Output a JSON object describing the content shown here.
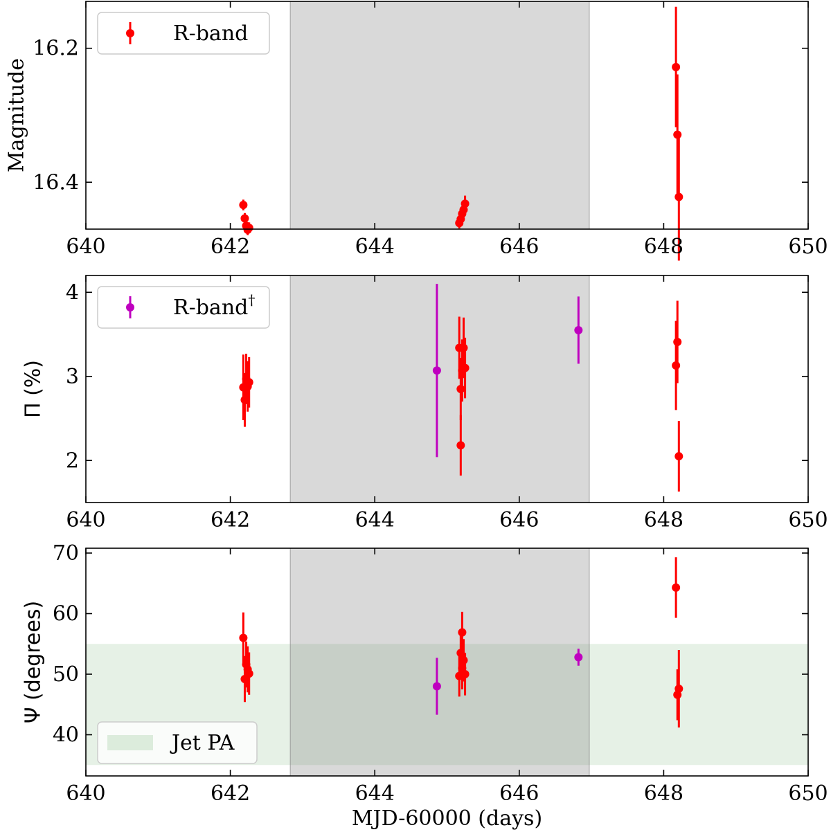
{
  "chart_data": [
    {
      "type": "scatter",
      "ylabel": "Magnitude",
      "xlim": [
        640,
        650
      ],
      "ylim": [
        16.47,
        16.13
      ],
      "y_inverted": true,
      "xticks": [
        640,
        642,
        644,
        646,
        648,
        650
      ],
      "xtick_labels": [
        "640",
        "642",
        "644",
        "646",
        "648",
        "650"
      ],
      "yticks": [
        16.2,
        16.4
      ],
      "ytick_labels": [
        "16.2",
        "16.4"
      ],
      "shaded_x": [
        642.83,
        646.97
      ],
      "legend": {
        "position": "top-left",
        "entries": [
          {
            "label": "R-band",
            "color": "#ff0000",
            "marker": "errorbar"
          }
        ]
      },
      "series": [
        {
          "color": "#ff0000",
          "points": [
            {
              "x": 642.18,
              "y": 16.434,
              "yerr": 0.008
            },
            {
              "x": 642.2,
              "y": 16.454,
              "yerr": 0.008
            },
            {
              "x": 642.22,
              "y": 16.465,
              "yerr": 0.008
            },
            {
              "x": 642.24,
              "y": 16.471,
              "yerr": 0.008
            },
            {
              "x": 642.26,
              "y": 16.468,
              "yerr": 0.008
            },
            {
              "x": 645.17,
              "y": 16.461,
              "yerr": 0.008
            },
            {
              "x": 645.19,
              "y": 16.455,
              "yerr": 0.008
            },
            {
              "x": 645.21,
              "y": 16.447,
              "yerr": 0.008
            },
            {
              "x": 645.23,
              "y": 16.441,
              "yerr": 0.008
            },
            {
              "x": 645.25,
              "y": 16.432,
              "yerr": 0.012
            },
            {
              "x": 648.17,
              "y": 16.228,
              "yerr": 0.09
            },
            {
              "x": 648.19,
              "y": 16.329,
              "yerr": 0.09
            },
            {
              "x": 648.21,
              "y": 16.422,
              "yerr": 0.095
            }
          ]
        }
      ]
    },
    {
      "type": "scatter",
      "ylabel": "Π (%)",
      "xlim": [
        640,
        650
      ],
      "ylim": [
        1.5,
        4.2
      ],
      "xticks": [
        640,
        642,
        644,
        646,
        648,
        650
      ],
      "xtick_labels": [
        "640",
        "642",
        "644",
        "646",
        "648",
        "650"
      ],
      "yticks": [
        2,
        3,
        4
      ],
      "ytick_labels": [
        "2",
        "3",
        "4"
      ],
      "shaded_x": [
        642.83,
        646.97
      ],
      "legend": {
        "position": "top-left",
        "entries": [
          {
            "label": "R-band",
            "sup": "†",
            "color": "#bf00bf",
            "marker": "errorbar"
          }
        ]
      },
      "series": [
        {
          "color": "#ff0000",
          "points": [
            {
              "x": 642.18,
              "y": 2.87,
              "yerr": 0.39
            },
            {
              "x": 642.2,
              "y": 2.72,
              "yerr": 0.32
            },
            {
              "x": 642.22,
              "y": 2.97,
              "yerr": 0.3
            },
            {
              "x": 642.24,
              "y": 2.88,
              "yerr": 0.3
            },
            {
              "x": 642.26,
              "y": 2.93,
              "yerr": 0.3
            },
            {
              "x": 645.17,
              "y": 3.34,
              "yerr": 0.37
            },
            {
              "x": 645.19,
              "y": 2.85,
              "yerr": 0.37
            },
            {
              "x": 645.19,
              "y": 2.18,
              "yerr": 0.36
            },
            {
              "x": 645.21,
              "y": 3.07,
              "yerr": 0.37
            },
            {
              "x": 645.23,
              "y": 3.34,
              "yerr": 0.36
            },
            {
              "x": 645.25,
              "y": 3.1,
              "yerr": 0.36
            },
            {
              "x": 648.17,
              "y": 3.13,
              "yerr": 0.53
            },
            {
              "x": 648.19,
              "y": 3.41,
              "yerr": 0.49
            },
            {
              "x": 648.21,
              "y": 2.05,
              "yerr": 0.42
            }
          ]
        },
        {
          "color": "#bf00bf",
          "points": [
            {
              "x": 644.86,
              "y": 3.07,
              "yerr": 1.03
            },
            {
              "x": 646.82,
              "y": 3.55,
              "yerr": 0.4
            }
          ]
        }
      ]
    },
    {
      "type": "scatter",
      "ylabel": "Ψ (degrees)",
      "xlabel": "MJD-60000 (days)",
      "xlim": [
        640,
        650
      ],
      "ylim": [
        33.2,
        70.8
      ],
      "xticks": [
        640,
        642,
        644,
        646,
        648,
        650
      ],
      "xtick_labels": [
        "640",
        "642",
        "644",
        "646",
        "648",
        "650"
      ],
      "yticks": [
        40,
        50,
        60,
        70
      ],
      "ytick_labels": [
        "40",
        "50",
        "60",
        "70"
      ],
      "shaded_x": [
        642.83,
        646.97
      ],
      "band_y": [
        35,
        55
      ],
      "legend": {
        "position": "bottom-left",
        "entries": [
          {
            "label": "Jet PA",
            "color": "#c8e6c9",
            "marker": "patch"
          }
        ]
      },
      "series": [
        {
          "color": "#ff0000",
          "points": [
            {
              "x": 642.18,
              "y": 56.0,
              "yerr": 4.2
            },
            {
              "x": 642.2,
              "y": 49.2,
              "yerr": 3.8
            },
            {
              "x": 642.22,
              "y": 51.6,
              "yerr": 3.8
            },
            {
              "x": 642.24,
              "y": 50.8,
              "yerr": 3.8
            },
            {
              "x": 642.26,
              "y": 50.1,
              "yerr": 3.5
            },
            {
              "x": 645.17,
              "y": 49.7,
              "yerr": 3.4
            },
            {
              "x": 645.19,
              "y": 53.5,
              "yerr": 3.5
            },
            {
              "x": 645.21,
              "y": 56.9,
              "yerr": 3.4
            },
            {
              "x": 645.21,
              "y": 51.0,
              "yerr": 3.5
            },
            {
              "x": 645.23,
              "y": 52.3,
              "yerr": 3.5
            },
            {
              "x": 645.25,
              "y": 50.0,
              "yerr": 3.5
            },
            {
              "x": 648.17,
              "y": 64.3,
              "yerr": 5.0
            },
            {
              "x": 648.19,
              "y": 46.6,
              "yerr": 4.2
            },
            {
              "x": 648.21,
              "y": 47.6,
              "yerr": 6.4
            }
          ]
        },
        {
          "color": "#bf00bf",
          "points": [
            {
              "x": 644.86,
              "y": 48.0,
              "yerr": 4.7
            },
            {
              "x": 646.82,
              "y": 52.8,
              "yerr": 1.4
            }
          ]
        }
      ]
    }
  ]
}
